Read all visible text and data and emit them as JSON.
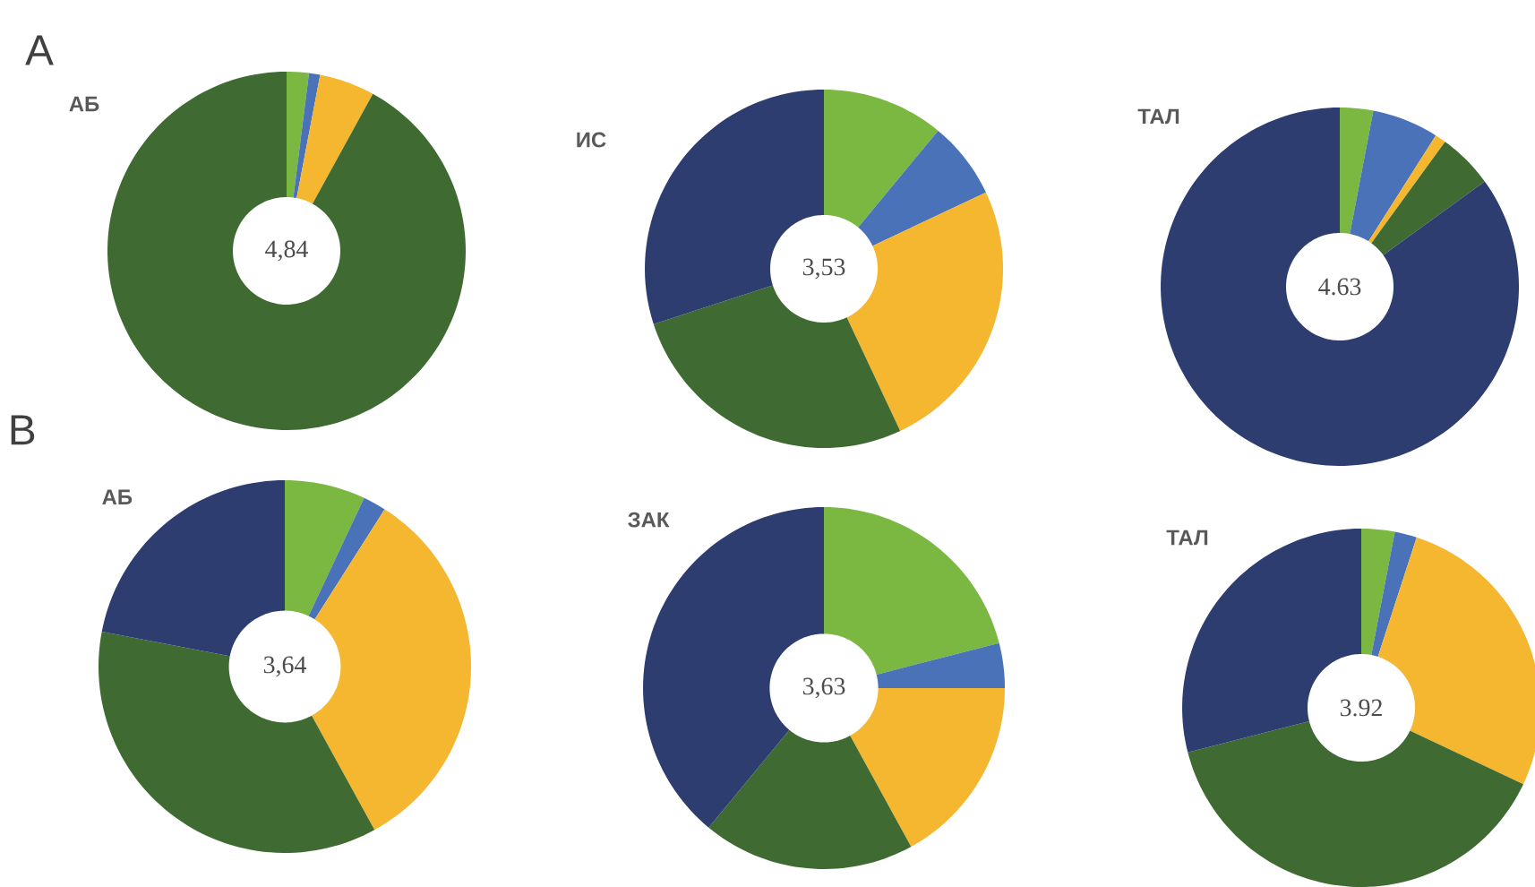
{
  "chart_data": [
    {
      "type": "donut",
      "title": "АБ",
      "categories": [
        null,
        null,
        null,
        null
      ],
      "values": [
        2,
        1,
        5,
        92
      ],
      "colors": [
        "#7bb842",
        "#4a72b8",
        "#f5b630",
        "#3f6b32"
      ],
      "annotations": [
        "4,84",
        "А"
      ]
    },
    {
      "type": "donut",
      "title": "ИС",
      "categories": [
        null,
        null,
        null,
        null,
        null
      ],
      "values": [
        11,
        7,
        25,
        27,
        30
      ],
      "colors": [
        "#7bb842",
        "#4a72b8",
        "#f5b630",
        "#3f6b32",
        "#2e3d70"
      ],
      "annotations": [
        "3,53"
      ]
    },
    {
      "type": "donut",
      "title": "ТАЛ",
      "categories": [
        null,
        null,
        null,
        null,
        null
      ],
      "values": [
        3,
        6,
        1,
        5,
        85
      ],
      "colors": [
        "#7bb842",
        "#4a72b8",
        "#f5b630",
        "#3f6b32",
        "#2e3d70"
      ],
      "annotations": [
        "4.63"
      ]
    },
    {
      "type": "donut",
      "title": "АБ",
      "categories": [
        null,
        null,
        null,
        null,
        null
      ],
      "values": [
        7,
        2,
        33,
        36,
        22
      ],
      "colors": [
        "#7bb842",
        "#4a72b8",
        "#f5b630",
        "#3f6b32",
        "#2e3d70"
      ],
      "annotations": [
        "3,64",
        "В"
      ]
    },
    {
      "type": "donut",
      "title": "ЗАК",
      "categories": [
        null,
        null,
        null,
        null,
        null
      ],
      "values": [
        21,
        4,
        17,
        19,
        39
      ],
      "colors": [
        "#7bb842",
        "#4a72b8",
        "#f5b630",
        "#3f6b32",
        "#2e3d70"
      ],
      "annotations": [
        "3,63"
      ]
    },
    {
      "type": "donut",
      "title": "ТАЛ",
      "categories": [
        null,
        null,
        null,
        null,
        null
      ],
      "values": [
        3,
        2,
        27,
        39,
        29
      ],
      "colors": [
        "#7bb842",
        "#4a72b8",
        "#f5b630",
        "#3f6b32",
        "#2e3d70"
      ],
      "annotations": [
        "3.92"
      ]
    }
  ]
}
